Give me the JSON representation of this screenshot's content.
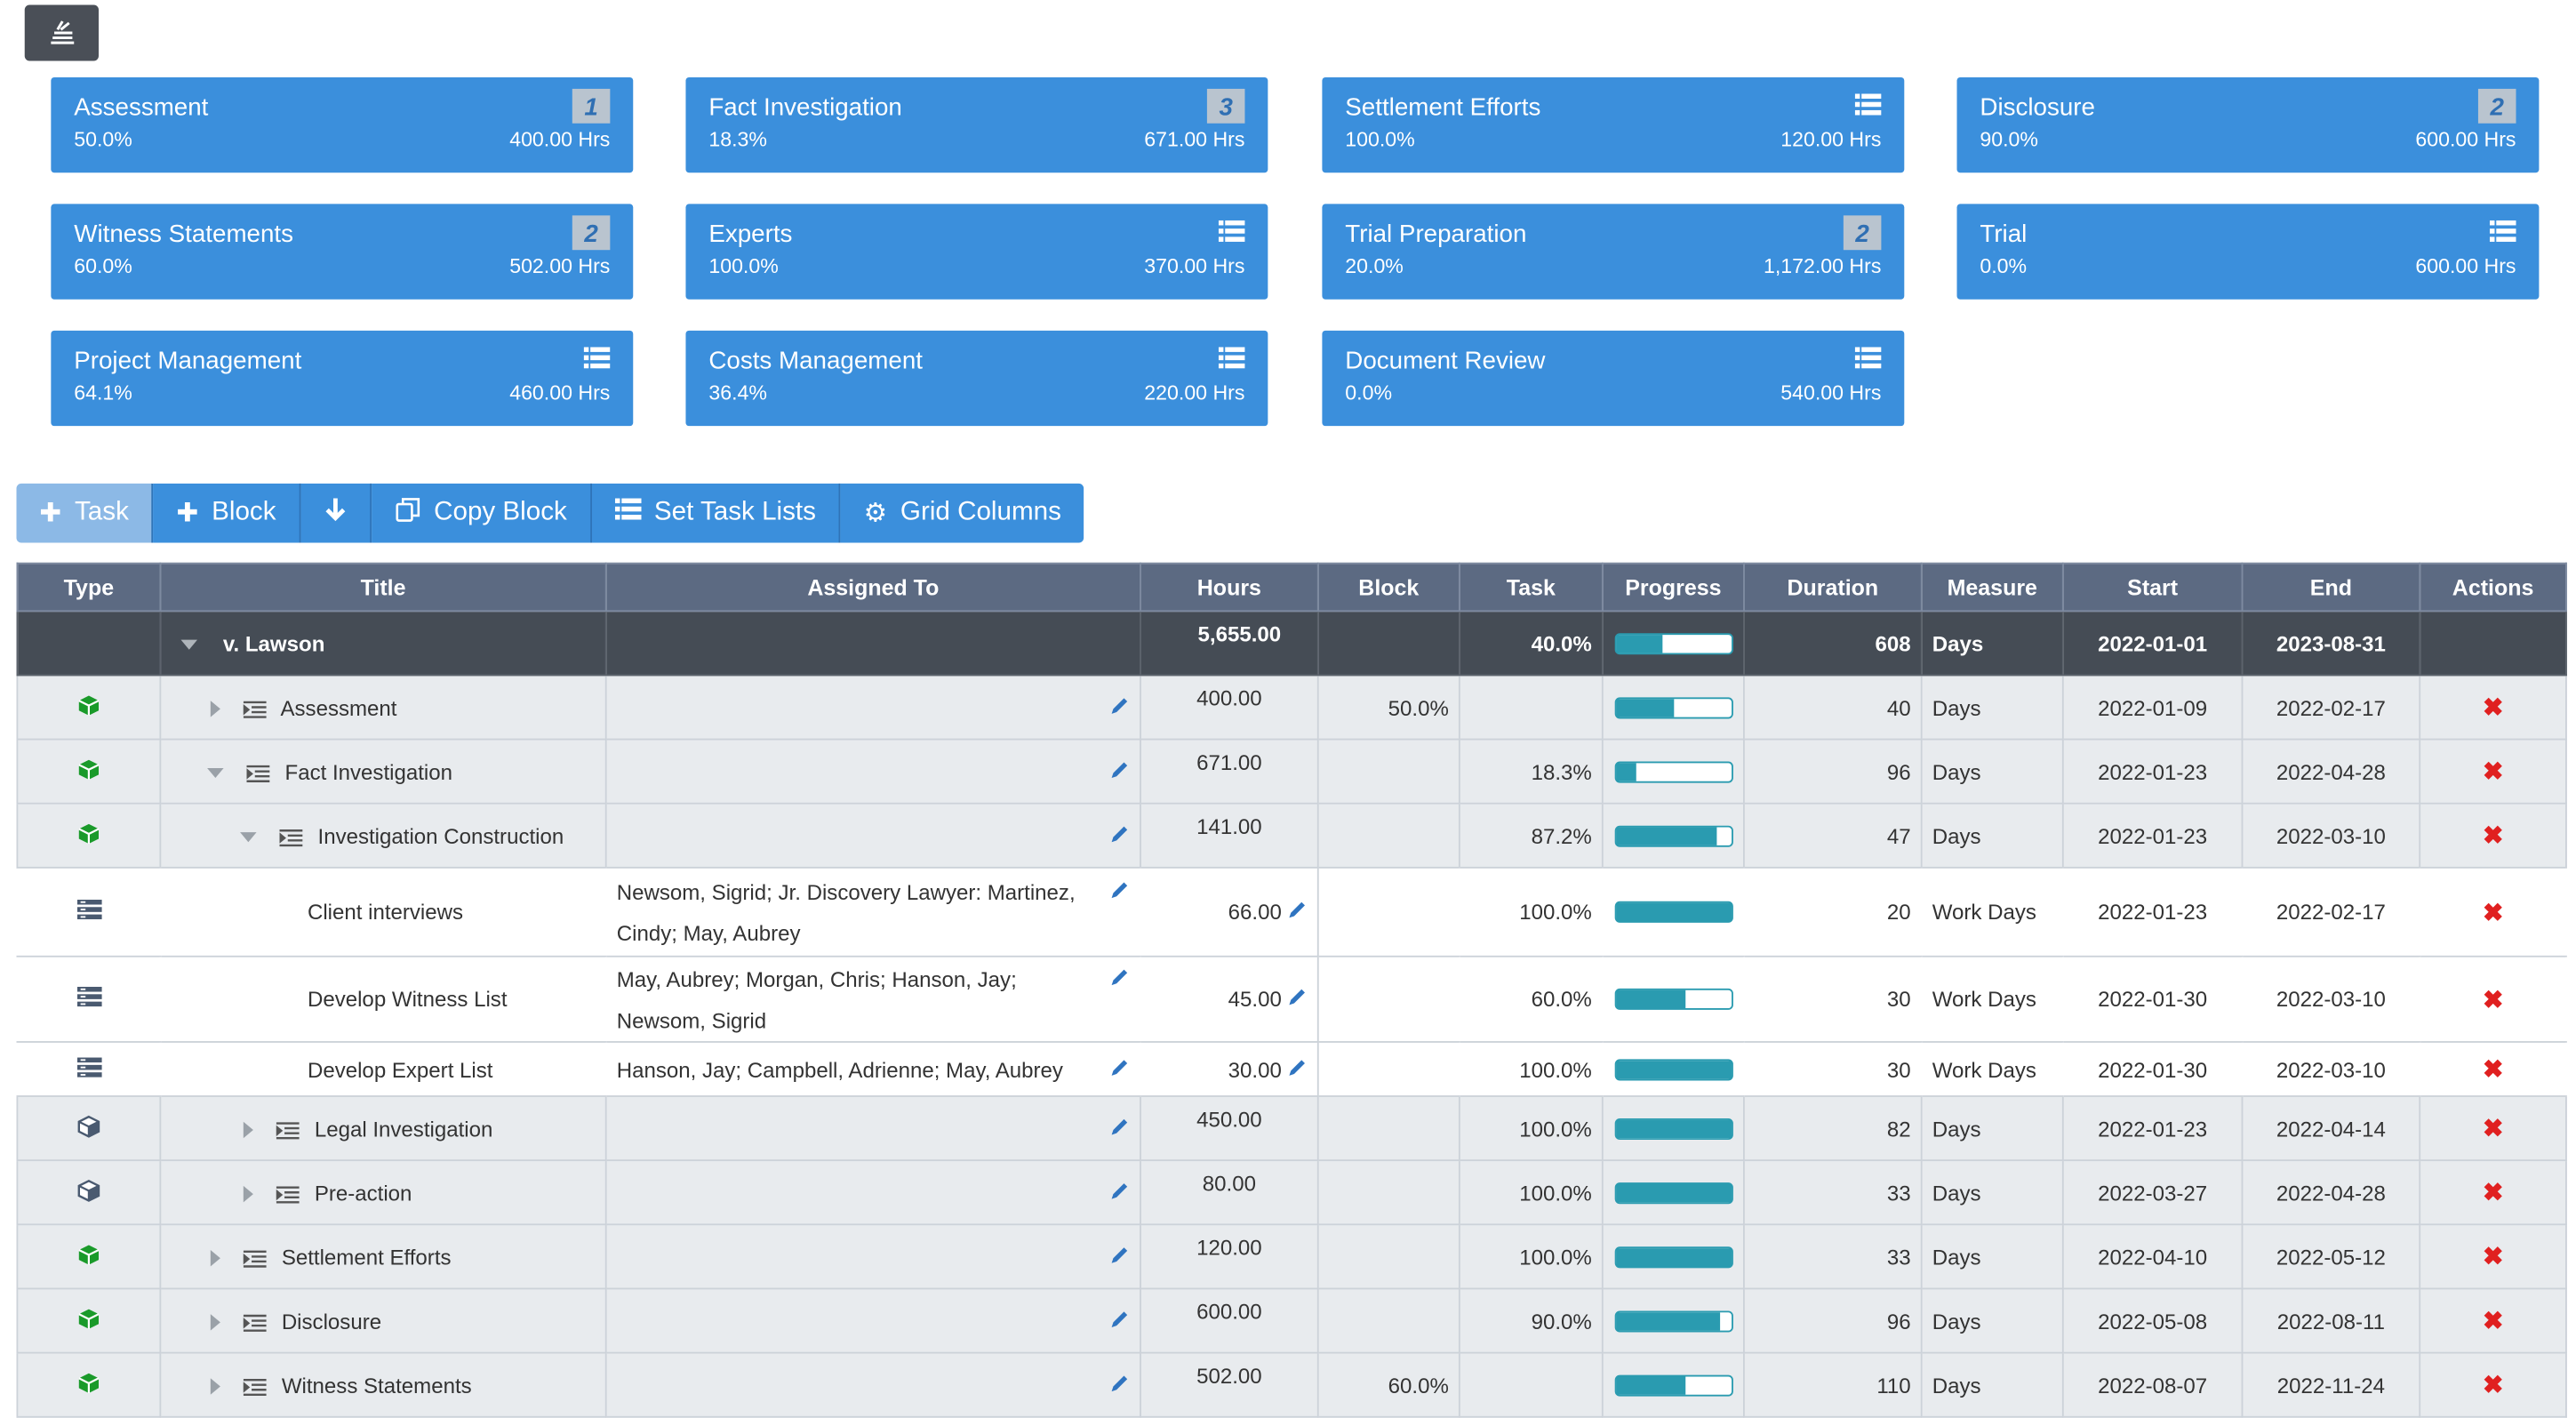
{
  "cards": [
    {
      "title": "Assessment",
      "pct": "50.0%",
      "hrs": "400.00 Hrs",
      "badge": "1",
      "progress": 0.5
    },
    {
      "title": "Fact Investigation",
      "pct": "18.3%",
      "hrs": "671.00 Hrs",
      "badge": "3",
      "progress": 0.183
    },
    {
      "title": "Settlement Efforts",
      "pct": "100.0%",
      "hrs": "120.00 Hrs",
      "badge": "",
      "progress": 1.0
    },
    {
      "title": "Disclosure",
      "pct": "90.0%",
      "hrs": "600.00 Hrs",
      "badge": "2",
      "progress": 0.9
    },
    {
      "title": "Witness Statements",
      "pct": "60.0%",
      "hrs": "502.00 Hrs",
      "badge": "2",
      "progress": 0.6
    },
    {
      "title": "Experts",
      "pct": "100.0%",
      "hrs": "370.00 Hrs",
      "badge": "",
      "progress": 1.0
    },
    {
      "title": "Trial Preparation",
      "pct": "20.0%",
      "hrs": "1,172.00 Hrs",
      "badge": "2",
      "progress": 0.2
    },
    {
      "title": "Trial",
      "pct": "0.0%",
      "hrs": "600.00 Hrs",
      "badge": "",
      "progress": 0.0
    },
    {
      "title": "Project Management",
      "pct": "64.1%",
      "hrs": "460.00 Hrs",
      "badge": "",
      "progress": 0.641
    },
    {
      "title": "Costs Management",
      "pct": "36.4%",
      "hrs": "220.00 Hrs",
      "badge": "",
      "progress": 0.364
    },
    {
      "title": "Document Review",
      "pct": "0.0%",
      "hrs": "540.00 Hrs",
      "badge": "",
      "progress": 0.0
    }
  ],
  "toolbar": {
    "task": "Task",
    "block": "Block",
    "copy_block": "Copy Block",
    "set_task_lists": "Set Task Lists",
    "grid_columns": "Grid Columns"
  },
  "columns": {
    "type": "Type",
    "title": "Title",
    "assigned": "Assigned To",
    "hours": "Hours",
    "block": "Block",
    "task": "Task",
    "progress": "Progress",
    "duration": "Duration",
    "measure": "Measure",
    "start": "Start",
    "end": "End",
    "actions": "Actions"
  },
  "root": {
    "title": "v. Lawson",
    "hours": "5,655.00",
    "task": "40.0%",
    "progress": 0.4,
    "duration": "608",
    "measure": "Days",
    "start": "2022-01-01",
    "end": "2023-08-31"
  },
  "rows": [
    {
      "title": "Assessment",
      "hours": "400.00",
      "block": "50.0%",
      "task": "",
      "progress": 0.5,
      "duration": "40",
      "measure": "Days",
      "start": "2022-01-09",
      "end": "2022-02-17"
    },
    {
      "title": "Fact Investigation",
      "hours": "671.00",
      "block": "",
      "task": "18.3%",
      "progress": 0.183,
      "duration": "96",
      "measure": "Days",
      "start": "2022-01-23",
      "end": "2022-04-28"
    },
    {
      "title": "Investigation Construction",
      "hours": "141.00",
      "block": "",
      "task": "87.2%",
      "progress": 0.872,
      "duration": "47",
      "measure": "Days",
      "start": "2022-01-23",
      "end": "2022-03-10"
    },
    {
      "title": "Client interviews",
      "assigned": "Newsom, Sigrid; Jr. Discovery Lawyer: Martinez, Cindy; May, Aubrey",
      "hours": "66.00",
      "block": "",
      "task": "100.0%",
      "progress": 1.0,
      "duration": "20",
      "measure": "Work Days",
      "start": "2022-01-23",
      "end": "2022-02-17"
    },
    {
      "title": "Develop Witness List",
      "assigned": "May, Aubrey; Morgan, Chris; Hanson, Jay; Newsom, Sigrid",
      "hours": "45.00",
      "block": "",
      "task": "60.0%",
      "progress": 0.6,
      "duration": "30",
      "measure": "Work Days",
      "start": "2022-01-30",
      "end": "2022-03-10"
    },
    {
      "title": "Develop Expert List",
      "assigned": "Hanson, Jay; Campbell, Adrienne; May, Aubrey",
      "hours": "30.00",
      "block": "",
      "task": "100.0%",
      "progress": 1.0,
      "duration": "30",
      "measure": "Work Days",
      "start": "2022-01-30",
      "end": "2022-03-10"
    },
    {
      "title": "Legal Investigation",
      "hours": "450.00",
      "block": "",
      "task": "100.0%",
      "progress": 1.0,
      "duration": "82",
      "measure": "Days",
      "start": "2022-01-23",
      "end": "2022-04-14"
    },
    {
      "title": "Pre-action",
      "hours": "80.00",
      "block": "",
      "task": "100.0%",
      "progress": 1.0,
      "duration": "33",
      "measure": "Days",
      "start": "2022-03-27",
      "end": "2022-04-28"
    },
    {
      "title": "Settlement Efforts",
      "hours": "120.00",
      "block": "",
      "task": "100.0%",
      "progress": 1.0,
      "duration": "33",
      "measure": "Days",
      "start": "2022-04-10",
      "end": "2022-05-12"
    },
    {
      "title": "Disclosure",
      "hours": "600.00",
      "block": "",
      "task": "90.0%",
      "progress": 0.9,
      "duration": "96",
      "measure": "Days",
      "start": "2022-05-08",
      "end": "2022-08-11"
    },
    {
      "title": "Witness Statements",
      "hours": "502.00",
      "block": "60.0%",
      "task": "",
      "progress": 0.6,
      "duration": "110",
      "measure": "Days",
      "start": "2022-08-07",
      "end": "2022-11-24"
    }
  ],
  "colors": {
    "accent": "#3b8fdc",
    "progress": "#2a9bb0",
    "header": "#5c6a82",
    "root_row": "#454c55",
    "delete": "#e02020",
    "block_green": "#1a9a2a"
  }
}
